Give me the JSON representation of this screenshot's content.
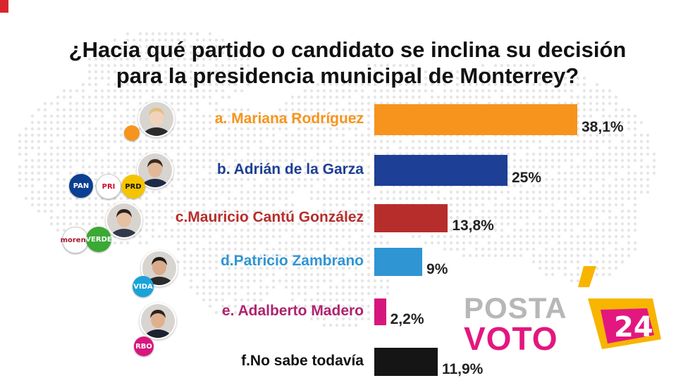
{
  "title_lines": [
    "¿Hacia qué partido o candidato se inclina su decisión",
    "para la presidencia municipal de Monterrey?"
  ],
  "chart_data": {
    "type": "bar",
    "orientation": "horizontal",
    "categories": [
      "a. Mariana Rodríguez",
      "b. Adrián de la Garza",
      "c.Mauricio Cantú González",
      "d.Patricio Zambrano",
      "e. Adalberto Madero",
      "f.No sabe todavía"
    ],
    "values": [
      38.1,
      25,
      13.8,
      9,
      2.2,
      11.9
    ],
    "value_labels": [
      "38,1%",
      "25%",
      "13,8%",
      "9%",
      "2,2%",
      "11,9%"
    ],
    "bar_colors": [
      "#f7941d",
      "#1d3f95",
      "#b72d2b",
      "#2f95d3",
      "#d7177d",
      "#151515"
    ],
    "label_colors": [
      "#f7941d",
      "#1d3f95",
      "#b72d2b",
      "#2f95d3",
      "#b0236f",
      "#111111"
    ],
    "xlim": [
      0,
      38.1
    ],
    "grid": false,
    "legend": "none"
  },
  "party_logos": {
    "row_0": [
      {
        "icon": "mc-logo-icon",
        "color": "#f7941d",
        "text": ""
      }
    ],
    "row_1": [
      {
        "icon": "pan-logo-icon",
        "color": "#0b3f91",
        "text": "PAN"
      },
      {
        "icon": "pri-logo-icon",
        "color": "#ffffff",
        "text": "PRI"
      },
      {
        "icon": "prd-logo-icon",
        "color": "#f5c400",
        "text": "PRD"
      }
    ],
    "row_2": [
      {
        "icon": "morena-logo-icon",
        "color": "#ffffff",
        "text": "morena"
      },
      {
        "icon": "verde-logo-icon",
        "color": "#3aa935",
        "text": "VERDE"
      }
    ],
    "row_3": [
      {
        "icon": "vida-logo-icon",
        "color": "#1aa3d9",
        "text": "VIDA"
      }
    ],
    "row_4": [
      {
        "icon": "rbo-logo-icon",
        "color": "#d7177d",
        "text": "RBO"
      }
    ]
  },
  "watermark": {
    "line1": "POSTA",
    "line2": "VOTO",
    "badge": "24"
  }
}
